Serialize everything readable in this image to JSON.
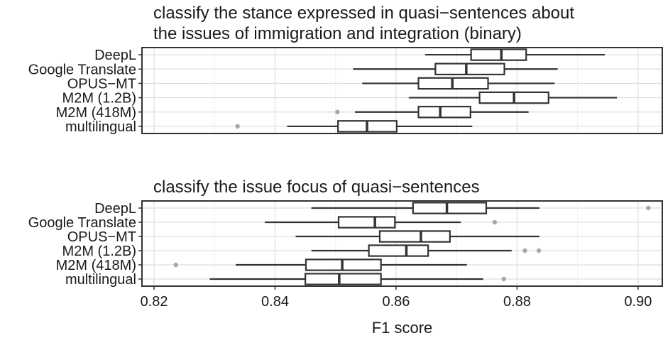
{
  "chart_data": [
    {
      "type": "boxplot",
      "orientation": "horizontal",
      "title": "classify the stance expressed in quasi−sentences about\nthe issues of immigration and integration (binary)",
      "xlabel": "",
      "xlim": [
        0.818,
        0.904
      ],
      "grid": true,
      "categories": [
        "DeepL",
        "Google Translate",
        "OPUS−MT",
        "M2M (1.2B)",
        "M2M (418M)",
        "multilingual"
      ],
      "boxes": [
        {
          "min": 0.8648,
          "q1": 0.8724,
          "median": 0.8774,
          "q3": 0.8815,
          "max": 0.8945,
          "outliers": []
        },
        {
          "min": 0.8529,
          "q1": 0.8665,
          "median": 0.8716,
          "q3": 0.8779,
          "max": 0.8867,
          "outliers": []
        },
        {
          "min": 0.8544,
          "q1": 0.8637,
          "median": 0.8693,
          "q3": 0.8752,
          "max": 0.8862,
          "outliers": []
        },
        {
          "min": 0.8621,
          "q1": 0.8738,
          "median": 0.8795,
          "q3": 0.8852,
          "max": 0.8965,
          "outliers": []
        },
        {
          "min": 0.8532,
          "q1": 0.8637,
          "median": 0.8673,
          "q3": 0.8723,
          "max": 0.8819,
          "outliers": [
            0.8503
          ]
        },
        {
          "min": 0.842,
          "q1": 0.8504,
          "median": 0.8552,
          "q3": 0.8601,
          "max": 0.8726,
          "outliers": [
            0.8338
          ]
        }
      ]
    },
    {
      "type": "boxplot",
      "orientation": "horizontal",
      "title": "classify the issue focus of quasi−sentences",
      "xlabel": "F1 score",
      "xlim": [
        0.818,
        0.904
      ],
      "grid": true,
      "xticks": [
        "0.82",
        "0.84",
        "0.86",
        "0.88",
        "0.90"
      ],
      "categories": [
        "DeepL",
        "Google Translate",
        "OPUS−MT",
        "M2M (1.2B)",
        "M2M (418M)",
        "multilingual"
      ],
      "boxes": [
        {
          "min": 0.846,
          "q1": 0.8628,
          "median": 0.8684,
          "q3": 0.8749,
          "max": 0.8837,
          "outliers": [
            0.9017
          ]
        },
        {
          "min": 0.8383,
          "q1": 0.8505,
          "median": 0.8565,
          "q3": 0.8598,
          "max": 0.8707,
          "outliers": [
            0.8763
          ]
        },
        {
          "min": 0.8434,
          "q1": 0.8573,
          "median": 0.8641,
          "q3": 0.8689,
          "max": 0.8837,
          "outliers": []
        },
        {
          "min": 0.846,
          "q1": 0.8555,
          "median": 0.8617,
          "q3": 0.8653,
          "max": 0.8791,
          "outliers": [
            0.8813,
            0.8836
          ]
        },
        {
          "min": 0.8335,
          "q1": 0.8451,
          "median": 0.8511,
          "q3": 0.8575,
          "max": 0.8717,
          "outliers": [
            0.8236
          ]
        },
        {
          "min": 0.8292,
          "q1": 0.845,
          "median": 0.8506,
          "q3": 0.8575,
          "max": 0.8744,
          "outliers": [
            0.8778
          ]
        }
      ]
    }
  ]
}
